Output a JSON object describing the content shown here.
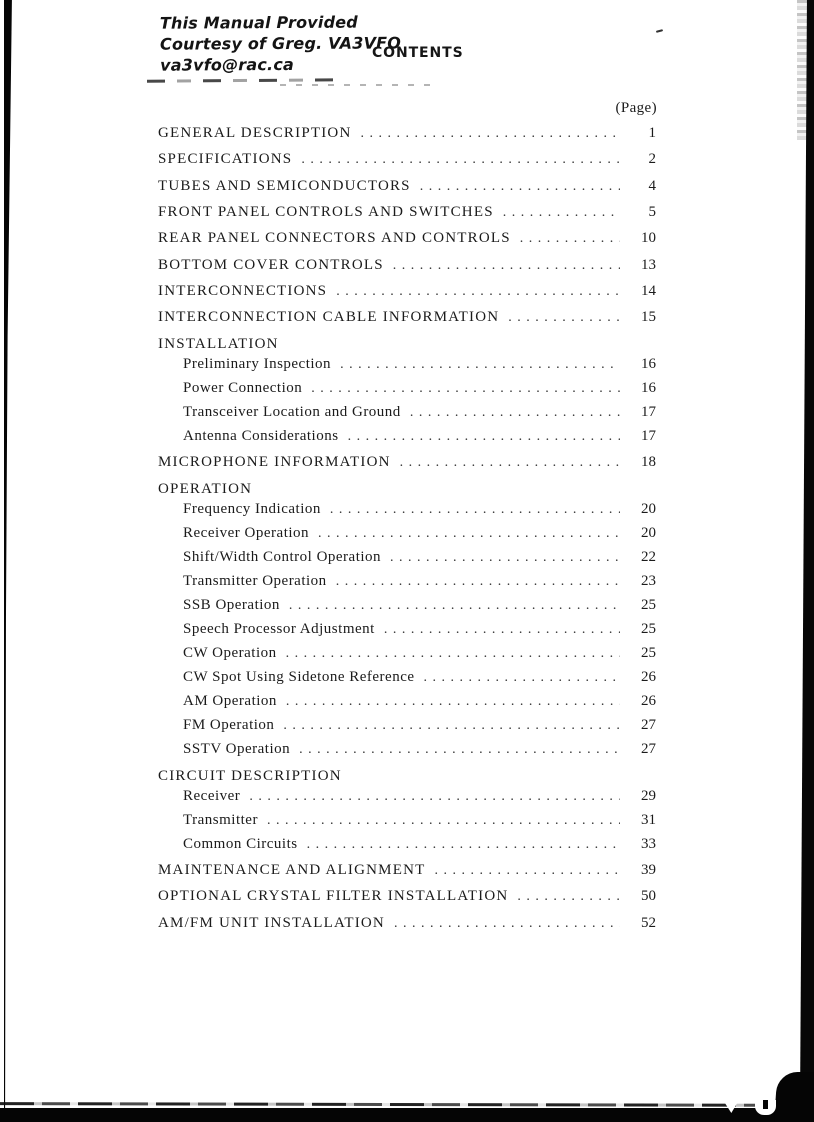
{
  "page": {
    "note": {
      "lines": [
        "This Manual Provided",
        "Courtesy of Greg. VA3VFO",
        "va3vfo@rac.ca"
      ]
    },
    "title": "CONTENTS",
    "page_column_label": "(Page)"
  },
  "toc": {
    "entries": [
      {
        "type": "main",
        "label": "GENERAL DESCRIPTION",
        "page": "1"
      },
      {
        "type": "main",
        "label": "SPECIFICATIONS",
        "page": "2"
      },
      {
        "type": "main",
        "label": "TUBES AND SEMICONDUCTORS",
        "page": "4"
      },
      {
        "type": "main",
        "label": "FRONT PANEL CONTROLS AND SWITCHES",
        "page": "5"
      },
      {
        "type": "main",
        "label": "REAR PANEL CONNECTORS AND CONTROLS",
        "page": "10"
      },
      {
        "type": "main",
        "label": "BOTTOM COVER CONTROLS",
        "page": "13"
      },
      {
        "type": "main",
        "label": "INTERCONNECTIONS",
        "page": "14"
      },
      {
        "type": "main",
        "label": "INTERCONNECTION CABLE INFORMATION",
        "page": "15"
      },
      {
        "type": "header",
        "label": "INSTALLATION"
      },
      {
        "type": "sub",
        "label": "Preliminary Inspection",
        "page": "16"
      },
      {
        "type": "sub",
        "label": "Power Connection",
        "page": "16"
      },
      {
        "type": "sub",
        "label": "Transceiver Location and Ground",
        "page": "17"
      },
      {
        "type": "sub",
        "label": "Antenna Considerations",
        "page": "17"
      },
      {
        "type": "main",
        "label": "MICROPHONE INFORMATION",
        "page": "18"
      },
      {
        "type": "header",
        "label": "OPERATION"
      },
      {
        "type": "sub",
        "label": "Frequency Indication",
        "page": "20"
      },
      {
        "type": "sub",
        "label": "Receiver Operation",
        "page": "20"
      },
      {
        "type": "sub",
        "label": "Shift/Width Control Operation",
        "page": "22"
      },
      {
        "type": "sub",
        "label": "Transmitter Operation",
        "page": "23"
      },
      {
        "type": "sub",
        "label": "SSB Operation",
        "page": "25"
      },
      {
        "type": "sub",
        "label": "Speech Processor Adjustment",
        "page": "25"
      },
      {
        "type": "sub",
        "label": "CW Operation",
        "page": "25"
      },
      {
        "type": "sub",
        "label": "CW Spot Using Sidetone Reference",
        "page": "26"
      },
      {
        "type": "sub",
        "label": "AM Operation",
        "page": "26"
      },
      {
        "type": "sub",
        "label": "FM Operation",
        "page": "27"
      },
      {
        "type": "sub",
        "label": "SSTV Operation",
        "page": "27"
      },
      {
        "type": "header",
        "label": "CIRCUIT DESCRIPTION"
      },
      {
        "type": "sub",
        "label": "Receiver",
        "page": "29"
      },
      {
        "type": "sub",
        "label": "Transmitter",
        "page": "31"
      },
      {
        "type": "sub",
        "label": "Common Circuits",
        "page": "33"
      },
      {
        "type": "main",
        "label": "MAINTENANCE AND ALIGNMENT",
        "page": "39"
      },
      {
        "type": "main",
        "label": "OPTIONAL CRYSTAL FILTER INSTALLATION",
        "page": "50"
      },
      {
        "type": "main",
        "label": "AM/FM UNIT INSTALLATION",
        "page": "52"
      }
    ]
  },
  "colors": {
    "ink": "#1b1b1b",
    "paper": "#ffffff",
    "scan_edge": "#050505"
  }
}
